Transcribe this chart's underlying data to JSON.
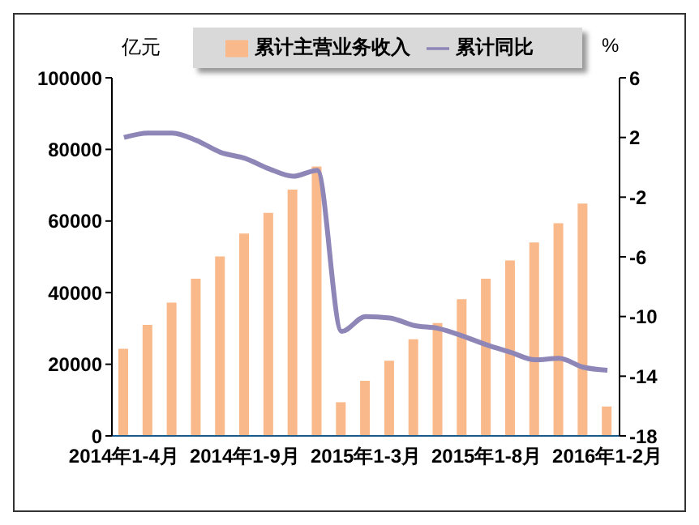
{
  "chart_data": {
    "type": "bar",
    "ylabel": "亿元",
    "y2label": "%",
    "categories": [
      "2014年1-4月",
      null,
      null,
      null,
      null,
      "2014年1-9月",
      null,
      null,
      null,
      null,
      "2015年1-3月",
      null,
      null,
      null,
      null,
      "2015年1-8月",
      null,
      null,
      null,
      null,
      "2016年1-2月"
    ],
    "series": [
      {
        "name": "累计主营业务收入",
        "color": "#f9b98a",
        "values": [
          24300,
          31000,
          37200,
          43900,
          50100,
          56500,
          62300,
          68800,
          75200,
          9400,
          15400,
          21000,
          27000,
          31500,
          38200,
          43900,
          49000,
          54000,
          59400,
          64900,
          8200
        ]
      },
      {
        "name": "累计同比",
        "type": "line",
        "axis": "y2",
        "color": "#8f86b8",
        "values": [
          2.0,
          2.3,
          2.3,
          1.8,
          1.0,
          0.6,
          -0.1,
          -0.6,
          -0.2,
          -11.0,
          -10.0,
          -10.1,
          -10.6,
          -10.8,
          -11.3,
          -11.9,
          -12.4,
          -12.9,
          -12.8,
          -13.4,
          -13.6
        ]
      }
    ],
    "ylim": [
      0,
      100000
    ],
    "yticks": [
      0,
      20000,
      40000,
      60000,
      80000,
      100000
    ],
    "y2lim": [
      -18,
      6
    ],
    "y2ticks": [
      -18,
      -14,
      -10,
      -6,
      -2,
      2,
      6
    ],
    "grid": false,
    "legend": "top",
    "marker": "none"
  }
}
